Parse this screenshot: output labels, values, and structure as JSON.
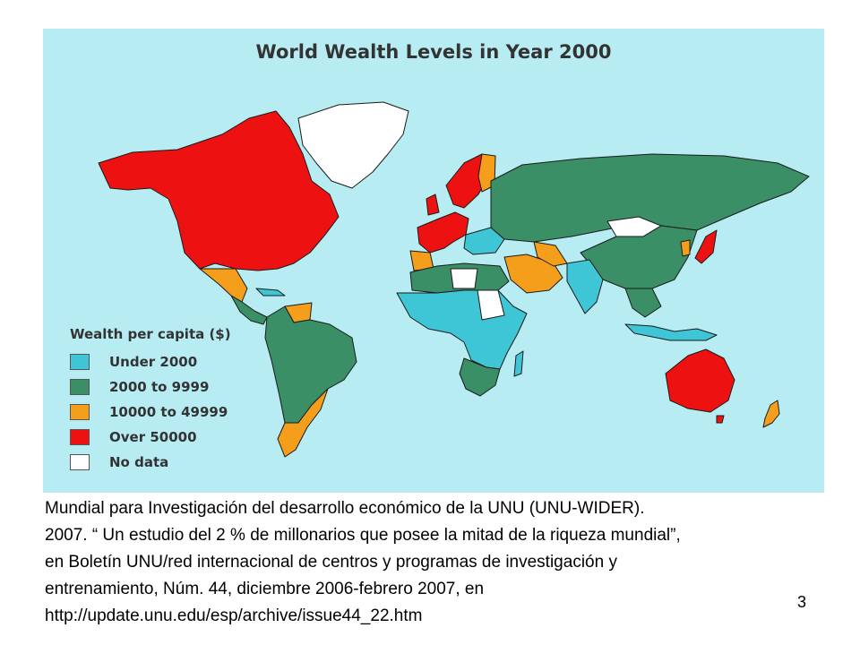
{
  "map": {
    "title": "World Wealth Levels in Year 2000",
    "legend": {
      "title": "Wealth per capita ($)",
      "items": [
        {
          "label": "Under 2000",
          "color": "#3fc6d6"
        },
        {
          "label": "2000 to 9999",
          "color": "#3a8f66"
        },
        {
          "label": "10000 to 49999",
          "color": "#f59e1c"
        },
        {
          "label": "Over 50000",
          "color": "#ee1111"
        },
        {
          "label": "No data",
          "color": "#ffffff"
        }
      ]
    },
    "ocean_color": "#b7ecf3"
  },
  "caption": {
    "lines": [
      "Mundial para Investigación del desarrollo económico de la UNU (UNU-WIDER).",
      "2007. “ Un estudio del 2 % de millonarios que posee la mitad de la riqueza mundial”,",
      "en Boletín UNU/red internacional de centros y programas de investigación y",
      "entrenamiento, Núm. 44, diciembre 2006-febrero 2007, en",
      "http://update.unu.edu/esp/archive/issue44_22.htm"
    ]
  },
  "page_number": "3"
}
